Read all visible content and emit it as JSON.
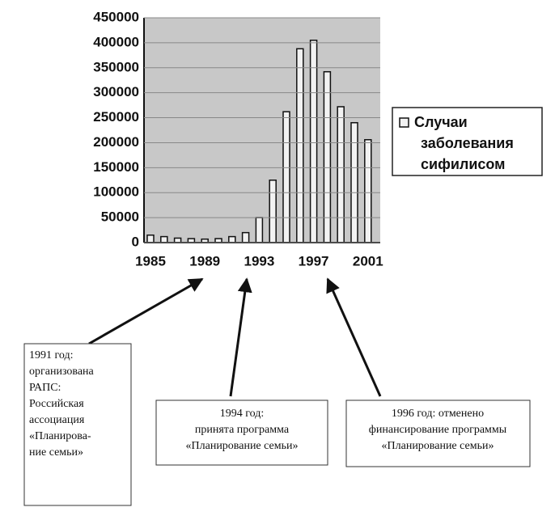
{
  "chart_data": {
    "type": "bar",
    "categories": [
      "1985",
      null,
      null,
      null,
      "1989",
      null,
      null,
      null,
      "1993",
      null,
      null,
      null,
      "1997",
      null,
      null,
      null,
      "2001"
    ],
    "series": [
      {
        "name": "Случаи заболевания сифилисом",
        "color": "#f2f2f2",
        "values": [
          15000,
          12000,
          9000,
          8000,
          7000,
          8000,
          12000,
          20000,
          50000,
          125000,
          262000,
          388000,
          405000,
          342000,
          272000,
          240000,
          206000
        ]
      }
    ],
    "ylim": [
      0,
      450000
    ],
    "yticks": [
      0,
      50000,
      100000,
      150000,
      200000,
      250000,
      300000,
      350000,
      400000,
      450000
    ],
    "grid": true,
    "legend": "right",
    "annotations": [
      {
        "lines": [
          "1991 год:",
          "организована",
          "РАПС:",
          "Российская",
          "ассоциация",
          "«Планирова-",
          "ние семьи»"
        ]
      },
      {
        "lines": [
          "1994 год:",
          "принята программа",
          "«Планирование семьи»"
        ]
      },
      {
        "lines": [
          "1996 год: отменено",
          "финансирование программы",
          "«Планирование семьи»"
        ]
      }
    ]
  }
}
